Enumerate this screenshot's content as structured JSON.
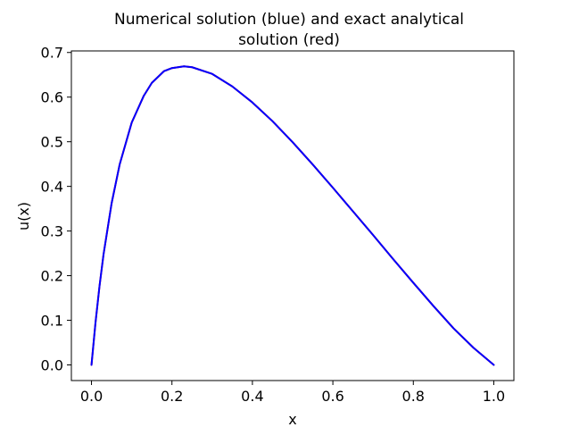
{
  "chart_data": {
    "type": "line",
    "title_lines": [
      "Numerical solution (blue) and exact analytical",
      "solution (red)"
    ],
    "xlabel": "x",
    "ylabel": "u(x)",
    "xlim": [
      -0.05,
      1.05
    ],
    "ylim": [
      -0.035,
      0.7035
    ],
    "x_ticks": [
      0.0,
      0.2,
      0.4,
      0.6,
      0.8,
      1.0
    ],
    "x_tick_labels": [
      "0.0",
      "0.2",
      "0.4",
      "0.6",
      "0.8",
      "1.0"
    ],
    "y_ticks": [
      0.0,
      0.1,
      0.2,
      0.3,
      0.4,
      0.5,
      0.6,
      0.7
    ],
    "y_tick_labels": [
      "0.0",
      "0.1",
      "0.2",
      "0.3",
      "0.4",
      "0.5",
      "0.6",
      "0.7"
    ],
    "grid": false,
    "legend": "none",
    "series": [
      {
        "color": "#ff0000",
        "x": [
          0.0,
          0.01,
          0.02,
          0.03,
          0.05,
          0.07,
          0.1,
          0.13,
          0.15,
          0.18,
          0.2,
          0.23,
          0.25,
          0.3,
          0.35,
          0.4,
          0.45,
          0.5,
          0.55,
          0.6,
          0.65,
          0.7,
          0.75,
          0.8,
          0.85,
          0.9,
          0.95,
          1.0
        ],
        "y": [
          0.0,
          0.095,
          0.177,
          0.248,
          0.362,
          0.449,
          0.543,
          0.603,
          0.632,
          0.658,
          0.665,
          0.669,
          0.667,
          0.652,
          0.624,
          0.588,
          0.546,
          0.499,
          0.449,
          0.397,
          0.344,
          0.291,
          0.237,
          0.184,
          0.132,
          0.082,
          0.038,
          0.0
        ]
      },
      {
        "color": "#0000ff",
        "x": [
          0.0,
          0.01,
          0.02,
          0.03,
          0.05,
          0.07,
          0.1,
          0.13,
          0.15,
          0.18,
          0.2,
          0.23,
          0.25,
          0.3,
          0.35,
          0.4,
          0.45,
          0.5,
          0.55,
          0.6,
          0.65,
          0.7,
          0.75,
          0.8,
          0.85,
          0.9,
          0.95,
          1.0
        ],
        "y": [
          0.0,
          0.095,
          0.177,
          0.248,
          0.362,
          0.449,
          0.543,
          0.603,
          0.632,
          0.658,
          0.665,
          0.669,
          0.667,
          0.652,
          0.624,
          0.588,
          0.546,
          0.499,
          0.449,
          0.397,
          0.344,
          0.291,
          0.237,
          0.184,
          0.132,
          0.082,
          0.038,
          0.0
        ]
      }
    ],
    "colors": {
      "axes": "#000000",
      "background": "#ffffff"
    }
  }
}
